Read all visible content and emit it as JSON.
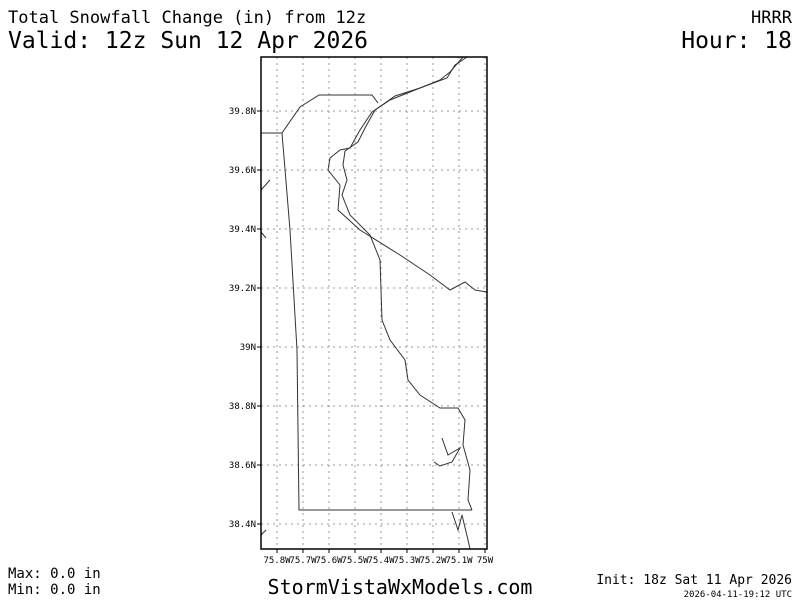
{
  "header": {
    "title": "Total Snowfall Change (in) from 12z",
    "model": "HRRR",
    "valid": "Valid: 12z Sun 12 Apr 2026",
    "hour": "Hour: 18"
  },
  "map": {
    "lat_labels": [
      "39.8N",
      "39.6N",
      "39.4N",
      "39.2N",
      "39N",
      "38.8N",
      "38.6N",
      "38.4N"
    ],
    "lon_labels": [
      "75.8W",
      "75.7W",
      "75.6W",
      "75.5W",
      "75.4W",
      "75.3W",
      "75.2W",
      "75.1W",
      "75W"
    ]
  },
  "footer": {
    "max": "Max: 0.0 in",
    "min": "Min: 0.0 in",
    "site": "StormVistaWxModels.com",
    "init": "Init: 18z Sat 11 Apr 2026",
    "timestamp": "2026-04-11-19:12 UTC"
  }
}
